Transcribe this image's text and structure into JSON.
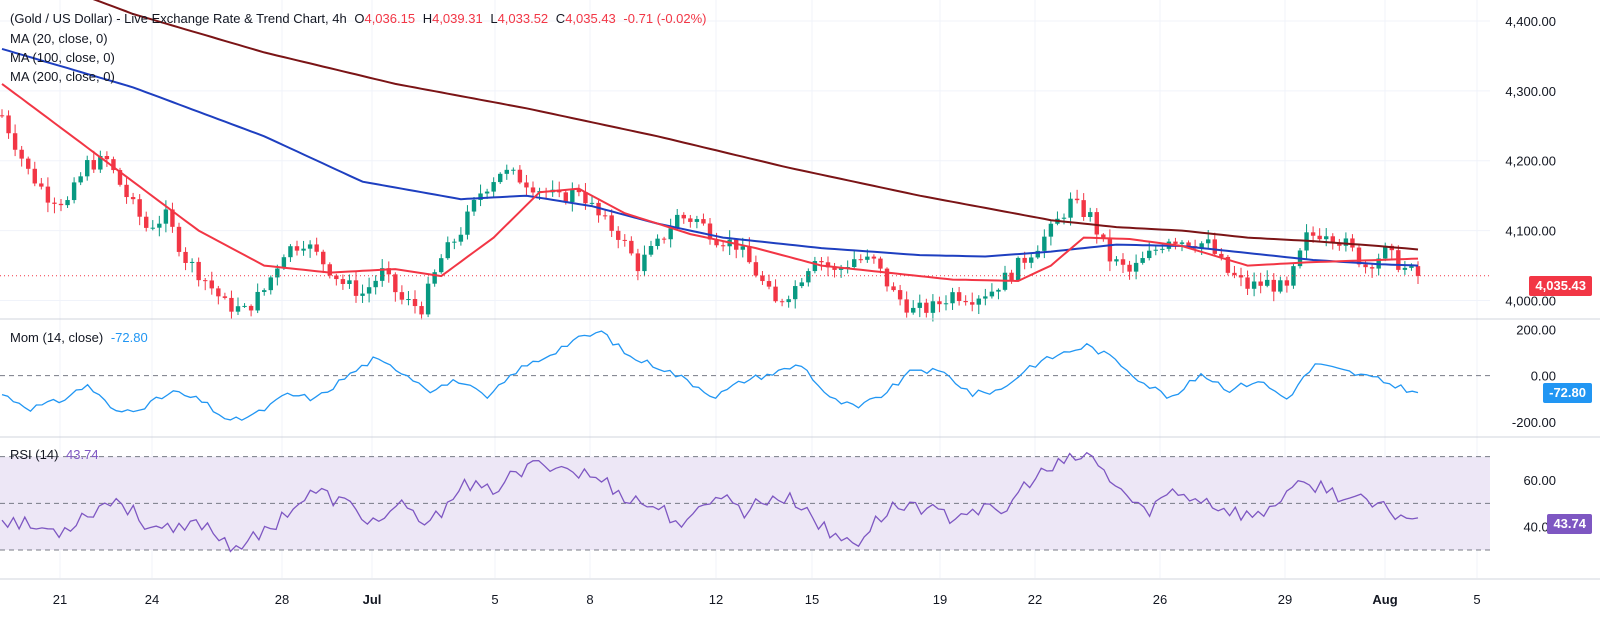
{
  "legend": {
    "title": "(Gold / US Dollar) - Live Exchange Rate & Trend Chart, 4h",
    "open_label": "O",
    "open": "4,036.15",
    "high_label": "H",
    "high": "4,039.31",
    "low_label": "L",
    "low": "4,033.52",
    "close_label": "C",
    "close": "4,035.43",
    "change": "-0.71 (-0.02%)",
    "ma20": "MA (20, close, 0)",
    "ma100": "MA (100, close, 0)",
    "ma200": "MA (200, close, 0)"
  },
  "colors": {
    "up": "#089981",
    "down": "#f23645",
    "ma20": "#f23645",
    "ma100": "#1e3fc0",
    "ma200": "#7b1416",
    "momentum": "#2196f3",
    "rsi": "#7e57c2",
    "rsi_band": "#ede7f6"
  },
  "chart_data": [
    {
      "type": "candlestick",
      "title": "(Gold / US Dollar) - Live Exchange Rate & Trend Chart, 4h",
      "ylim": [
        3975,
        4430
      ],
      "y_ticks": [
        "4,000.00",
        "4,100.00",
        "4,200.00",
        "4,300.00",
        "4,400.00"
      ],
      "y_tick_values": [
        4000,
        4100,
        4200,
        4300,
        4400
      ],
      "x_ticks": [
        "21",
        "24",
        "28",
        "Jul",
        "5",
        "8",
        "12",
        "15",
        "19",
        "22",
        "26",
        "29",
        "Aug",
        "5"
      ],
      "last_price": "4,035.43",
      "last_price_value": 4035.43,
      "close_anchors": [
        [
          0,
          4265
        ],
        [
          4,
          4185
        ],
        [
          7,
          4150
        ],
        [
          10,
          4140
        ],
        [
          13,
          4195
        ],
        [
          16,
          4200
        ],
        [
          19,
          4150
        ],
        [
          22,
          4105
        ],
        [
          25,
          4120
        ],
        [
          28,
          4060
        ],
        [
          31,
          4030
        ],
        [
          34,
          3995
        ],
        [
          37,
          3985
        ],
        [
          40,
          4015
        ],
        [
          43,
          4070
        ],
        [
          46,
          4085
        ],
        [
          49,
          4055
        ],
        [
          52,
          4025
        ],
        [
          55,
          4010
        ],
        [
          58,
          4040
        ],
        [
          61,
          4000
        ],
        [
          64,
          3990
        ],
        [
          67,
          4060
        ],
        [
          70,
          4100
        ],
        [
          73,
          4155
        ],
        [
          76,
          4185
        ],
        [
          79,
          4175
        ],
        [
          82,
          4160
        ],
        [
          85,
          4145
        ],
        [
          88,
          4160
        ],
        [
          91,
          4120
        ],
        [
          94,
          4095
        ],
        [
          97,
          4050
        ],
        [
          100,
          4080
        ],
        [
          103,
          4120
        ],
        [
          106,
          4115
        ],
        [
          109,
          4090
        ],
        [
          112,
          4080
        ],
        [
          115,
          4040
        ],
        [
          118,
          3995
        ],
        [
          121,
          4020
        ],
        [
          124,
          4065
        ],
        [
          127,
          4040
        ],
        [
          130,
          4060
        ],
        [
          133,
          4055
        ],
        [
          136,
          4010
        ],
        [
          139,
          3985
        ],
        [
          142,
          3990
        ],
        [
          145,
          4010
        ],
        [
          148,
          4005
        ],
        [
          151,
          4015
        ],
        [
          154,
          4040
        ],
        [
          157,
          4070
        ],
        [
          160,
          4100
        ],
        [
          163,
          4140
        ],
        [
          166,
          4120
        ],
        [
          169,
          4060
        ],
        [
          172,
          4040
        ],
        [
          175,
          4065
        ],
        [
          178,
          4090
        ],
        [
          181,
          4085
        ],
        [
          184,
          4080
        ],
        [
          187,
          4040
        ],
        [
          190,
          4020
        ],
        [
          193,
          4025
        ],
        [
          196,
          4015
        ],
        [
          199,
          4090
        ],
        [
          202,
          4100
        ],
        [
          205,
          4080
        ],
        [
          208,
          4050
        ],
        [
          211,
          4070
        ],
        [
          214,
          4045
        ],
        [
          216,
          4035
        ]
      ],
      "ma20_anchors": [
        [
          0,
          4310
        ],
        [
          10,
          4240
        ],
        [
          20,
          4170
        ],
        [
          30,
          4100
        ],
        [
          40,
          4050
        ],
        [
          50,
          4040
        ],
        [
          60,
          4045
        ],
        [
          67,
          4035
        ],
        [
          75,
          4090
        ],
        [
          82,
          4155
        ],
        [
          88,
          4160
        ],
        [
          95,
          4125
        ],
        [
          105,
          4095
        ],
        [
          115,
          4075
        ],
        [
          125,
          4050
        ],
        [
          135,
          4040
        ],
        [
          145,
          4030
        ],
        [
          155,
          4028
        ],
        [
          160,
          4050
        ],
        [
          165,
          4090
        ],
        [
          172,
          4088
        ],
        [
          180,
          4078
        ],
        [
          190,
          4050
        ],
        [
          200,
          4055
        ],
        [
          210,
          4058
        ],
        [
          216,
          4060
        ]
      ],
      "ma100_anchors": [
        [
          0,
          4360
        ],
        [
          20,
          4305
        ],
        [
          40,
          4235
        ],
        [
          55,
          4170
        ],
        [
          70,
          4145
        ],
        [
          80,
          4150
        ],
        [
          90,
          4135
        ],
        [
          100,
          4110
        ],
        [
          110,
          4090
        ],
        [
          125,
          4075
        ],
        [
          140,
          4065
        ],
        [
          150,
          4063
        ],
        [
          160,
          4070
        ],
        [
          170,
          4080
        ],
        [
          180,
          4078
        ],
        [
          190,
          4068
        ],
        [
          200,
          4058
        ],
        [
          210,
          4052
        ],
        [
          216,
          4050
        ]
      ],
      "ma200_anchors": [
        [
          0,
          4480
        ],
        [
          20,
          4410
        ],
        [
          40,
          4355
        ],
        [
          60,
          4310
        ],
        [
          80,
          4275
        ],
        [
          100,
          4235
        ],
        [
          120,
          4190
        ],
        [
          140,
          4150
        ],
        [
          160,
          4115
        ],
        [
          170,
          4105
        ],
        [
          180,
          4100
        ],
        [
          190,
          4090
        ],
        [
          200,
          4085
        ],
        [
          210,
          4078
        ],
        [
          216,
          4073
        ]
      ]
    },
    {
      "type": "line",
      "title": "Mom (14, close)",
      "current": "-72.80",
      "current_value": -72.8,
      "ylim": [
        -260,
        240
      ],
      "y_ticks": [
        "-200.00",
        "0.00",
        "200.00"
      ],
      "y_tick_values": [
        -200,
        0,
        200
      ],
      "reference_line": 0,
      "anchors": [
        [
          0,
          -80
        ],
        [
          5,
          -140
        ],
        [
          10,
          -110
        ],
        [
          15,
          -40
        ],
        [
          20,
          -160
        ],
        [
          25,
          -130
        ],
        [
          30,
          -70
        ],
        [
          35,
          -110
        ],
        [
          40,
          -200
        ],
        [
          45,
          -160
        ],
        [
          50,
          -80
        ],
        [
          55,
          -100
        ],
        [
          60,
          -10
        ],
        [
          65,
          70
        ],
        [
          70,
          20
        ],
        [
          75,
          -60
        ],
        [
          80,
          -20
        ],
        [
          85,
          -100
        ],
        [
          90,
          20
        ],
        [
          95,
          80
        ],
        [
          100,
          150
        ],
        [
          105,
          190
        ],
        [
          110,
          80
        ],
        [
          115,
          40
        ],
        [
          120,
          -20
        ],
        [
          125,
          -90
        ],
        [
          130,
          -20
        ],
        [
          135,
          10
        ],
        [
          140,
          50
        ],
        [
          145,
          -100
        ],
        [
          150,
          -140
        ],
        [
          155,
          -70
        ],
        [
          160,
          30
        ],
        [
          165,
          10
        ],
        [
          170,
          -80
        ],
        [
          175,
          -60
        ],
        [
          180,
          40
        ],
        [
          185,
          90
        ],
        [
          190,
          130
        ],
        [
          195,
          70
        ],
        [
          200,
          -30
        ],
        [
          205,
          -100
        ],
        [
          210,
          10
        ],
        [
          215,
          -60
        ],
        [
          220,
          -20
        ],
        [
          225,
          -100
        ],
        [
          230,
          50
        ],
        [
          235,
          20
        ],
        [
          240,
          -10
        ],
        [
          245,
          -50
        ],
        [
          248,
          -72.8
        ]
      ]
    },
    {
      "type": "line",
      "title": "RSI (14)",
      "current": "43.74",
      "current_value": 43.74,
      "ylim": [
        18,
        78
      ],
      "y_ticks": [
        "40.00",
        "60.00"
      ],
      "y_tick_values": [
        40,
        60
      ],
      "band": [
        30,
        70
      ],
      "reference_lines": [
        30,
        50,
        70
      ],
      "anchors": [
        [
          0,
          44
        ],
        [
          5,
          40
        ],
        [
          10,
          38
        ],
        [
          15,
          46
        ],
        [
          20,
          52
        ],
        [
          25,
          42
        ],
        [
          30,
          37
        ],
        [
          35,
          42
        ],
        [
          40,
          32
        ],
        [
          45,
          35
        ],
        [
          50,
          47
        ],
        [
          55,
          55
        ],
        [
          60,
          50
        ],
        [
          65,
          42
        ],
        [
          70,
          48
        ],
        [
          75,
          40
        ],
        [
          80,
          58
        ],
        [
          85,
          55
        ],
        [
          90,
          62
        ],
        [
          95,
          68
        ],
        [
          100,
          64
        ],
        [
          105,
          60
        ],
        [
          110,
          52
        ],
        [
          115,
          48
        ],
        [
          120,
          40
        ],
        [
          125,
          55
        ],
        [
          130,
          47
        ],
        [
          135,
          53
        ],
        [
          140,
          50
        ],
        [
          145,
          36
        ],
        [
          150,
          34
        ],
        [
          155,
          47
        ],
        [
          160,
          50
        ],
        [
          165,
          44
        ],
        [
          170,
          48
        ],
        [
          175,
          45
        ],
        [
          180,
          60
        ],
        [
          185,
          66
        ],
        [
          190,
          71
        ],
        [
          195,
          58
        ],
        [
          200,
          46
        ],
        [
          205,
          55
        ],
        [
          210,
          52
        ],
        [
          215,
          47
        ],
        [
          220,
          44
        ],
        [
          225,
          55
        ],
        [
          230,
          58
        ],
        [
          235,
          53
        ],
        [
          240,
          49
        ],
        [
          245,
          45
        ],
        [
          248,
          43.74
        ]
      ]
    }
  ]
}
